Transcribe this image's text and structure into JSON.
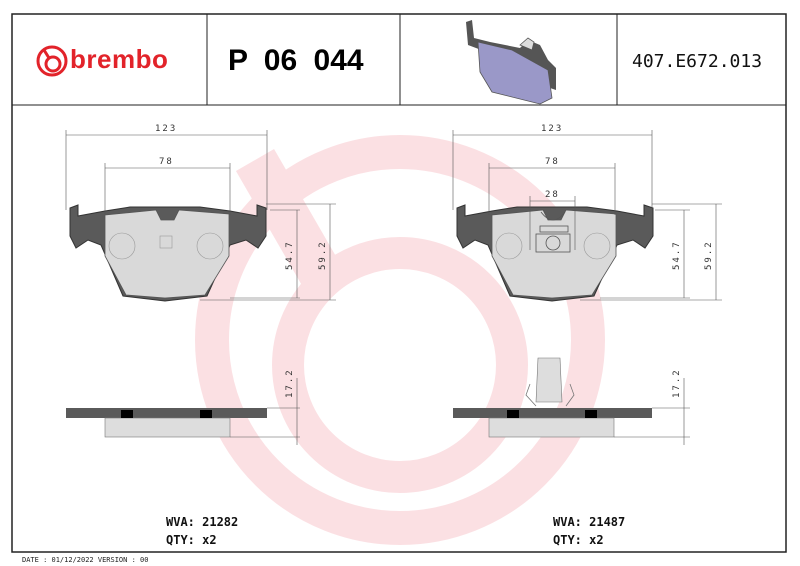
{
  "header": {
    "brand": "brembo",
    "part_number": "P 06 044",
    "reference": "407.E672.013",
    "product_image": "brake-pad-3d-render"
  },
  "colors": {
    "brand_red": "#e2232a",
    "watermark_pink": "#fbdde0",
    "pad_material": "#d9d9d9",
    "backing_plate": "#5a5a5a",
    "render_purple": "#9a98c8"
  },
  "left_pad": {
    "dim_width_total": "123",
    "dim_width_material": "78",
    "dim_height_1": "54.7",
    "dim_height_2": "59.2",
    "dim_thickness": "17.2",
    "wva": "WVA: 21282",
    "qty": "QTY: x2"
  },
  "right_pad": {
    "dim_width_total": "123",
    "dim_width_material": "78",
    "dim_clip": "28",
    "dim_height_1": "54.7",
    "dim_height_2": "59.2",
    "dim_thickness": "17.2",
    "wva": "WVA: 21487",
    "qty": "QTY: x2"
  },
  "footer": "DATE : 01/12/2022 VERSION : 00"
}
